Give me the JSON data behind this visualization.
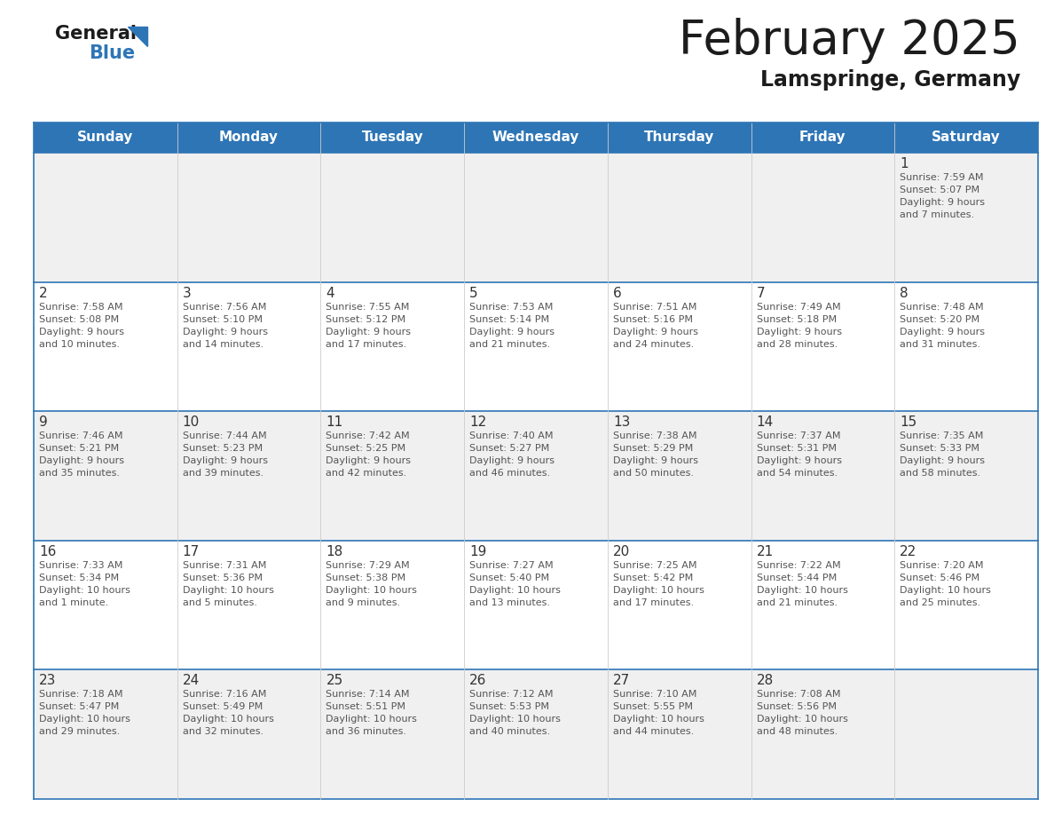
{
  "title": "February 2025",
  "subtitle": "Lamspringe, Germany",
  "header_color": "#2E75B6",
  "header_text_color": "#FFFFFF",
  "day_names": [
    "Sunday",
    "Monday",
    "Tuesday",
    "Wednesday",
    "Thursday",
    "Friday",
    "Saturday"
  ],
  "cell_bg_white": "#FFFFFF",
  "cell_bg_gray": "#F0F0F0",
  "border_color": "#2E75B6",
  "line_color": "#AAAAAA",
  "number_color": "#333333",
  "text_color": "#555555",
  "calendar": [
    [
      {
        "day": null,
        "info": ""
      },
      {
        "day": null,
        "info": ""
      },
      {
        "day": null,
        "info": ""
      },
      {
        "day": null,
        "info": ""
      },
      {
        "day": null,
        "info": ""
      },
      {
        "day": null,
        "info": ""
      },
      {
        "day": 1,
        "info": "Sunrise: 7:59 AM\nSunset: 5:07 PM\nDaylight: 9 hours\nand 7 minutes."
      }
    ],
    [
      {
        "day": 2,
        "info": "Sunrise: 7:58 AM\nSunset: 5:08 PM\nDaylight: 9 hours\nand 10 minutes."
      },
      {
        "day": 3,
        "info": "Sunrise: 7:56 AM\nSunset: 5:10 PM\nDaylight: 9 hours\nand 14 minutes."
      },
      {
        "day": 4,
        "info": "Sunrise: 7:55 AM\nSunset: 5:12 PM\nDaylight: 9 hours\nand 17 minutes."
      },
      {
        "day": 5,
        "info": "Sunrise: 7:53 AM\nSunset: 5:14 PM\nDaylight: 9 hours\nand 21 minutes."
      },
      {
        "day": 6,
        "info": "Sunrise: 7:51 AM\nSunset: 5:16 PM\nDaylight: 9 hours\nand 24 minutes."
      },
      {
        "day": 7,
        "info": "Sunrise: 7:49 AM\nSunset: 5:18 PM\nDaylight: 9 hours\nand 28 minutes."
      },
      {
        "day": 8,
        "info": "Sunrise: 7:48 AM\nSunset: 5:20 PM\nDaylight: 9 hours\nand 31 minutes."
      }
    ],
    [
      {
        "day": 9,
        "info": "Sunrise: 7:46 AM\nSunset: 5:21 PM\nDaylight: 9 hours\nand 35 minutes."
      },
      {
        "day": 10,
        "info": "Sunrise: 7:44 AM\nSunset: 5:23 PM\nDaylight: 9 hours\nand 39 minutes."
      },
      {
        "day": 11,
        "info": "Sunrise: 7:42 AM\nSunset: 5:25 PM\nDaylight: 9 hours\nand 42 minutes."
      },
      {
        "day": 12,
        "info": "Sunrise: 7:40 AM\nSunset: 5:27 PM\nDaylight: 9 hours\nand 46 minutes."
      },
      {
        "day": 13,
        "info": "Sunrise: 7:38 AM\nSunset: 5:29 PM\nDaylight: 9 hours\nand 50 minutes."
      },
      {
        "day": 14,
        "info": "Sunrise: 7:37 AM\nSunset: 5:31 PM\nDaylight: 9 hours\nand 54 minutes."
      },
      {
        "day": 15,
        "info": "Sunrise: 7:35 AM\nSunset: 5:33 PM\nDaylight: 9 hours\nand 58 minutes."
      }
    ],
    [
      {
        "day": 16,
        "info": "Sunrise: 7:33 AM\nSunset: 5:34 PM\nDaylight: 10 hours\nand 1 minute."
      },
      {
        "day": 17,
        "info": "Sunrise: 7:31 AM\nSunset: 5:36 PM\nDaylight: 10 hours\nand 5 minutes."
      },
      {
        "day": 18,
        "info": "Sunrise: 7:29 AM\nSunset: 5:38 PM\nDaylight: 10 hours\nand 9 minutes."
      },
      {
        "day": 19,
        "info": "Sunrise: 7:27 AM\nSunset: 5:40 PM\nDaylight: 10 hours\nand 13 minutes."
      },
      {
        "day": 20,
        "info": "Sunrise: 7:25 AM\nSunset: 5:42 PM\nDaylight: 10 hours\nand 17 minutes."
      },
      {
        "day": 21,
        "info": "Sunrise: 7:22 AM\nSunset: 5:44 PM\nDaylight: 10 hours\nand 21 minutes."
      },
      {
        "day": 22,
        "info": "Sunrise: 7:20 AM\nSunset: 5:46 PM\nDaylight: 10 hours\nand 25 minutes."
      }
    ],
    [
      {
        "day": 23,
        "info": "Sunrise: 7:18 AM\nSunset: 5:47 PM\nDaylight: 10 hours\nand 29 minutes."
      },
      {
        "day": 24,
        "info": "Sunrise: 7:16 AM\nSunset: 5:49 PM\nDaylight: 10 hours\nand 32 minutes."
      },
      {
        "day": 25,
        "info": "Sunrise: 7:14 AM\nSunset: 5:51 PM\nDaylight: 10 hours\nand 36 minutes."
      },
      {
        "day": 26,
        "info": "Sunrise: 7:12 AM\nSunset: 5:53 PM\nDaylight: 10 hours\nand 40 minutes."
      },
      {
        "day": 27,
        "info": "Sunrise: 7:10 AM\nSunset: 5:55 PM\nDaylight: 10 hours\nand 44 minutes."
      },
      {
        "day": 28,
        "info": "Sunrise: 7:08 AM\nSunset: 5:56 PM\nDaylight: 10 hours\nand 48 minutes."
      },
      {
        "day": null,
        "info": ""
      }
    ]
  ]
}
